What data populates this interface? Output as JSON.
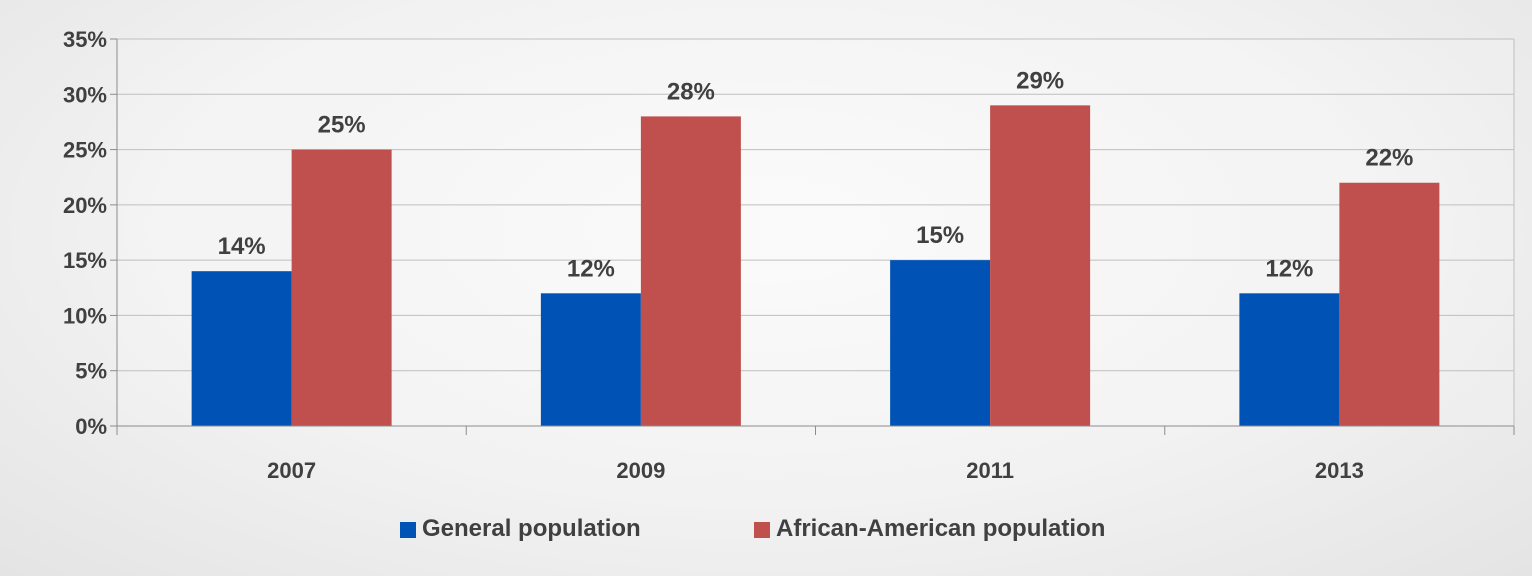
{
  "chart_data": {
    "type": "bar",
    "categories": [
      "2007",
      "2009",
      "2011",
      "2013"
    ],
    "series": [
      {
        "name": "General population",
        "values": [
          14,
          12,
          15,
          12
        ],
        "color": "#0052b4"
      },
      {
        "name": "African-American population",
        "values": [
          25,
          28,
          29,
          22
        ],
        "color": "#c0504d"
      }
    ],
    "data_labels": [
      [
        "14%",
        "12%",
        "15%",
        "12%"
      ],
      [
        "25%",
        "28%",
        "29%",
        "22%"
      ]
    ],
    "y_ticks": [
      0,
      5,
      10,
      15,
      20,
      25,
      30,
      35
    ],
    "y_tick_labels": [
      "0%",
      "5%",
      "10%",
      "15%",
      "20%",
      "25%",
      "30%",
      "35%"
    ],
    "ylim": [
      0,
      35
    ],
    "grid": true,
    "legend_position": "bottom",
    "title": "",
    "xlabel": "",
    "ylabel": ""
  }
}
